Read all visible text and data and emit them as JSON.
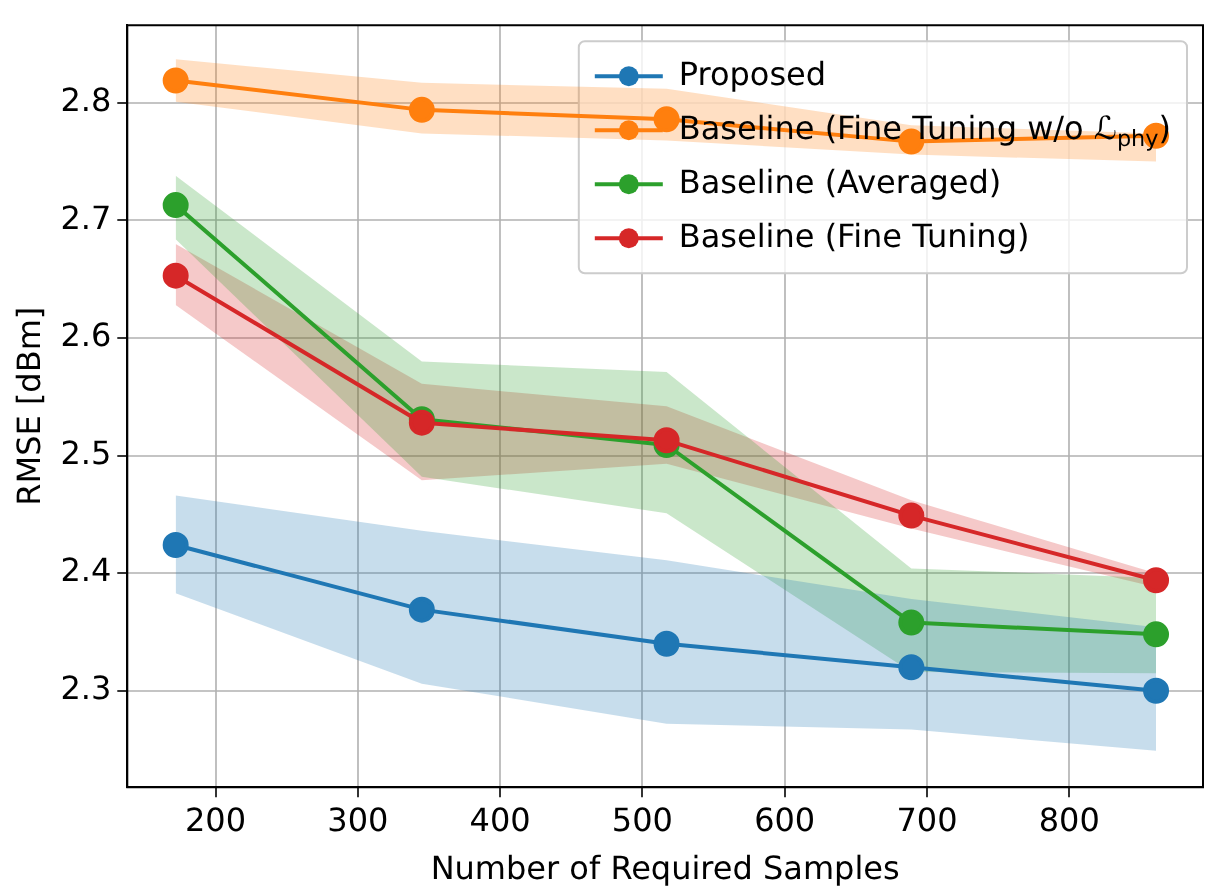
{
  "chart_data": {
    "type": "line",
    "xlabel": "Number of Required Samples",
    "ylabel": "RMSE [dBm]",
    "x": [
      172,
      345,
      517,
      689,
      861
    ],
    "xlim": [
      138,
      894
    ],
    "xticks": [
      200,
      300,
      400,
      500,
      600,
      700,
      800
    ],
    "ylim": [
      2.218,
      2.866
    ],
    "yticks": [
      2.3,
      2.4,
      2.5,
      2.6,
      2.7,
      2.8
    ],
    "grid": true,
    "legend": "top right",
    "marker": "circle",
    "line_style": "solid",
    "series": [
      {
        "name": "Proposed",
        "color": "#1f77b4",
        "values": [
          2.424,
          2.369,
          2.34,
          2.32,
          2.3
        ],
        "lower": [
          2.383,
          2.306,
          2.272,
          2.267,
          2.249
        ],
        "upper": [
          2.466,
          2.436,
          2.411,
          2.378,
          2.354
        ]
      },
      {
        "name": "Baseline (Fine Tuning w/o ℒ$_{phy}$)",
        "color": "#ff7f0e",
        "values": [
          2.819,
          2.794,
          2.786,
          2.767,
          2.772
        ],
        "lower": [
          2.801,
          2.774,
          2.768,
          2.756,
          2.75
        ],
        "upper": [
          2.837,
          2.817,
          2.812,
          2.781,
          2.774
        ]
      },
      {
        "name": "Baseline (Averaged)",
        "color": "#2ca02c",
        "values": [
          2.713,
          2.531,
          2.509,
          2.358,
          2.348
        ],
        "lower": [
          2.684,
          2.482,
          2.451,
          2.316,
          2.315
        ],
        "upper": [
          2.738,
          2.58,
          2.571,
          2.404,
          2.396
        ]
      },
      {
        "name": "Baseline (Fine Tuning)",
        "color": "#d62728",
        "values": [
          2.653,
          2.528,
          2.513,
          2.449,
          2.394
        ],
        "lower": [
          2.628,
          2.479,
          2.493,
          2.438,
          2.388
        ],
        "upper": [
          2.68,
          2.561,
          2.542,
          2.462,
          2.4
        ]
      }
    ]
  }
}
